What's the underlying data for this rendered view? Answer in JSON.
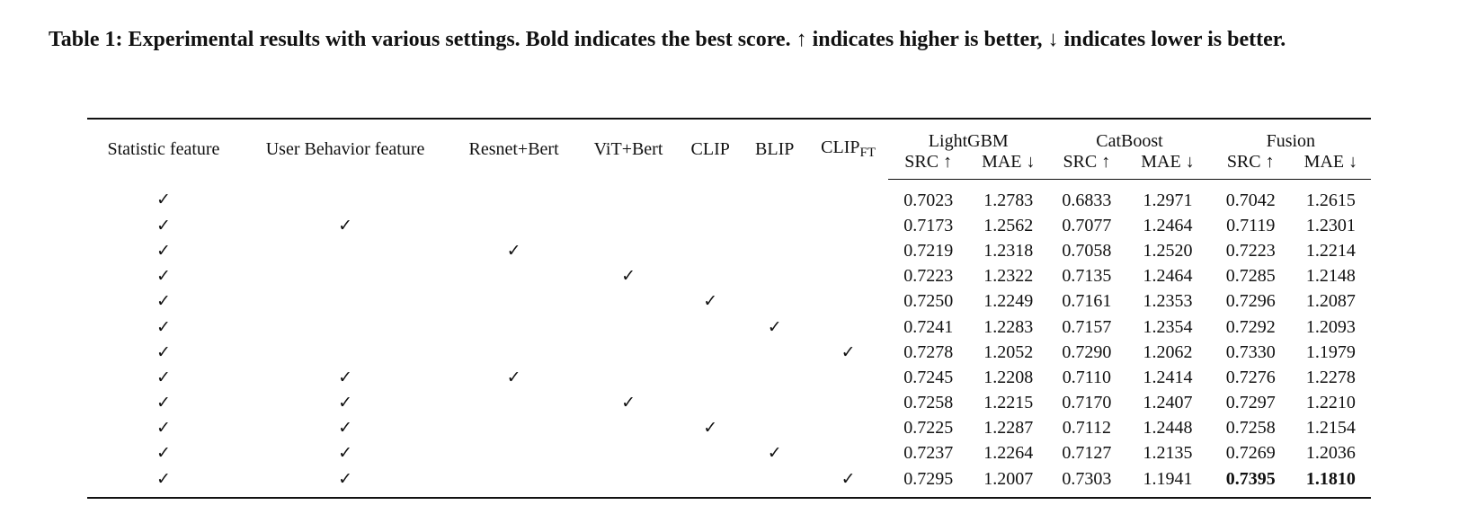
{
  "caption": "Table 1: Experimental results with various settings. Bold indicates the best score. ↑ indicates higher is better, ↓ indicates lower is better.",
  "headers": {
    "features": [
      "Statistic feature",
      "User Behavior feature",
      "Resnet+Bert",
      "ViT+Bert",
      "CLIP",
      "BLIP"
    ],
    "clip_ft_base": "CLIP",
    "clip_ft_sub": "FT",
    "groups": [
      "LightGBM",
      "CatBoost",
      "Fusion"
    ],
    "metrics": [
      "SRC ↑",
      "MAE ↓",
      "SRC ↑",
      "MAE ↓",
      "SRC ↑",
      "MAE ↓"
    ]
  },
  "check_glyph": "✓",
  "best_color": "#111111",
  "rows": [
    {
      "checks": [
        true,
        false,
        false,
        false,
        false,
        false,
        false
      ],
      "values": [
        "0.7023",
        "1.2783",
        "0.6833",
        "1.2971",
        "0.7042",
        "1.2615"
      ]
    },
    {
      "checks": [
        true,
        true,
        false,
        false,
        false,
        false,
        false
      ],
      "values": [
        "0.7173",
        "1.2562",
        "0.7077",
        "1.2464",
        "0.7119",
        "1.2301"
      ]
    },
    {
      "checks": [
        true,
        false,
        true,
        false,
        false,
        false,
        false
      ],
      "values": [
        "0.7219",
        "1.2318",
        "0.7058",
        "1.2520",
        "0.7223",
        "1.2214"
      ]
    },
    {
      "checks": [
        true,
        false,
        false,
        true,
        false,
        false,
        false
      ],
      "values": [
        "0.7223",
        "1.2322",
        "0.7135",
        "1.2464",
        "0.7285",
        "1.2148"
      ]
    },
    {
      "checks": [
        true,
        false,
        false,
        false,
        true,
        false,
        false
      ],
      "values": [
        "0.7250",
        "1.2249",
        "0.7161",
        "1.2353",
        "0.7296",
        "1.2087"
      ]
    },
    {
      "checks": [
        true,
        false,
        false,
        false,
        false,
        true,
        false
      ],
      "values": [
        "0.7241",
        "1.2283",
        "0.7157",
        "1.2354",
        "0.7292",
        "1.2093"
      ]
    },
    {
      "checks": [
        true,
        false,
        false,
        false,
        false,
        false,
        true
      ],
      "values": [
        "0.7278",
        "1.2052",
        "0.7290",
        "1.2062",
        "0.7330",
        "1.1979"
      ]
    },
    {
      "checks": [
        true,
        true,
        true,
        false,
        false,
        false,
        false
      ],
      "values": [
        "0.7245",
        "1.2208",
        "0.7110",
        "1.2414",
        "0.7276",
        "1.2278"
      ]
    },
    {
      "checks": [
        true,
        true,
        false,
        true,
        false,
        false,
        false
      ],
      "values": [
        "0.7258",
        "1.2215",
        "0.7170",
        "1.2407",
        "0.7297",
        "1.2210"
      ]
    },
    {
      "checks": [
        true,
        true,
        false,
        false,
        true,
        false,
        false
      ],
      "values": [
        "0.7225",
        "1.2287",
        "0.7112",
        "1.2448",
        "0.7258",
        "1.2154"
      ]
    },
    {
      "checks": [
        true,
        true,
        false,
        false,
        false,
        true,
        false
      ],
      "values": [
        "0.7237",
        "1.2264",
        "0.7127",
        "1.2135",
        "0.7269",
        "1.2036"
      ]
    },
    {
      "checks": [
        true,
        true,
        false,
        false,
        false,
        false,
        true
      ],
      "values": [
        "0.7295",
        "1.2007",
        "0.7303",
        "1.1941",
        "0.7395",
        "1.1810"
      ],
      "bold_cols": [
        4,
        5
      ]
    }
  ]
}
